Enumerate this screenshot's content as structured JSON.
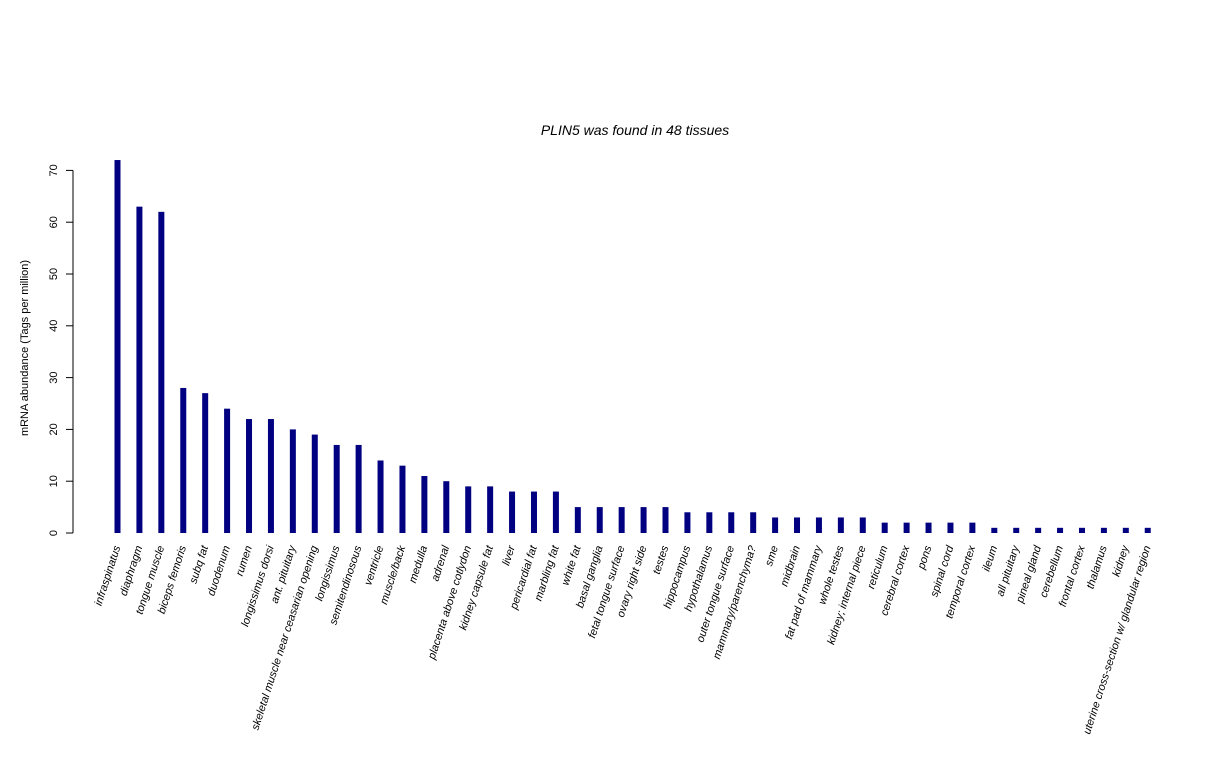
{
  "chart_data": {
    "type": "bar",
    "title": "PLIN5  was found in  48  tissues",
    "ylabel": "mRNA abundance (Tags per million)",
    "xlabel": "",
    "ylim": [
      0,
      72
    ],
    "yticks": [
      0,
      10,
      20,
      30,
      40,
      50,
      60,
      70
    ],
    "grid": false,
    "bar_color": "#000080",
    "categories": [
      "infraspinatus",
      "diaphragm",
      "tongue muscle",
      "biceps femoris",
      "subq fat",
      "duodenum",
      "rumen",
      "longissimus dorsi",
      "ant. pituitary",
      "skeletal muscle near ceasarian opening",
      "longissimus",
      "semitendinosous",
      "ventricle",
      "muscle/back",
      "medulla",
      "adrenal",
      "placenta above cotlydon",
      "kidney capsule fat",
      "liver",
      "pericardial fat",
      "marbling fat",
      "white fat",
      "basal ganglia",
      "fetal tongue surface",
      "ovary right side",
      "testes",
      "hippocampus",
      "hypothalamus",
      "outer tongue surface",
      "mammary/parenchyma?",
      "sme",
      "midbrain",
      "fat pad of mammary",
      "whole testes",
      "kidney; internal piece",
      "reticulum",
      "cerebral cortex",
      "pons",
      "spinal cord",
      "temporal cortex",
      "ileum",
      "all pituitary",
      "pineal gland",
      "cerebellum",
      "frontal cortex",
      "thalamus",
      "kidney",
      "uterine cross-section w/ glandular region"
    ],
    "values": [
      72,
      63,
      62,
      28,
      27,
      24,
      22,
      22,
      20,
      19,
      17,
      17,
      14,
      13,
      11,
      10,
      9,
      9,
      8,
      8,
      8,
      5,
      5,
      5,
      5,
      5,
      4,
      4,
      4,
      4,
      3,
      3,
      3,
      3,
      3,
      2,
      2,
      2,
      2,
      2,
      1,
      1,
      1,
      1,
      1,
      1,
      1,
      1
    ]
  }
}
